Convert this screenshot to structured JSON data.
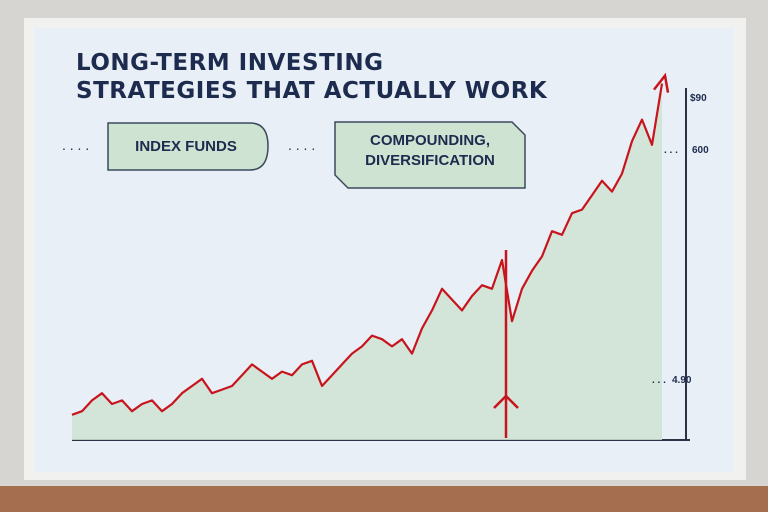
{
  "chart_data": {
    "type": "line",
    "title_lines": [
      "LONG-TERM INVESTING",
      "STRATEGIES THAT ACTUALLY WORK"
    ],
    "callouts": [
      "INDEX FUNDS",
      "COMPOUNDING,\nDIVERSIFICATION"
    ],
    "annotations": [
      "$90",
      "600",
      "4.90"
    ],
    "color": "#c8141c",
    "area_color": "#cfe3d2",
    "ylim": [
      0,
      100
    ],
    "values": [
      7,
      8,
      11,
      13,
      10,
      11,
      8,
      10,
      11,
      8,
      10,
      13,
      15,
      17,
      13,
      14,
      15,
      18,
      21,
      19,
      17,
      19,
      18,
      21,
      22,
      15,
      18,
      21,
      24,
      26,
      29,
      28,
      26,
      28,
      24,
      31,
      36,
      42,
      39,
      36,
      40,
      43,
      42,
      50,
      33,
      42,
      47,
      51,
      58,
      57,
      63,
      64,
      68,
      72,
      69,
      74,
      83,
      89,
      82,
      99
    ]
  }
}
